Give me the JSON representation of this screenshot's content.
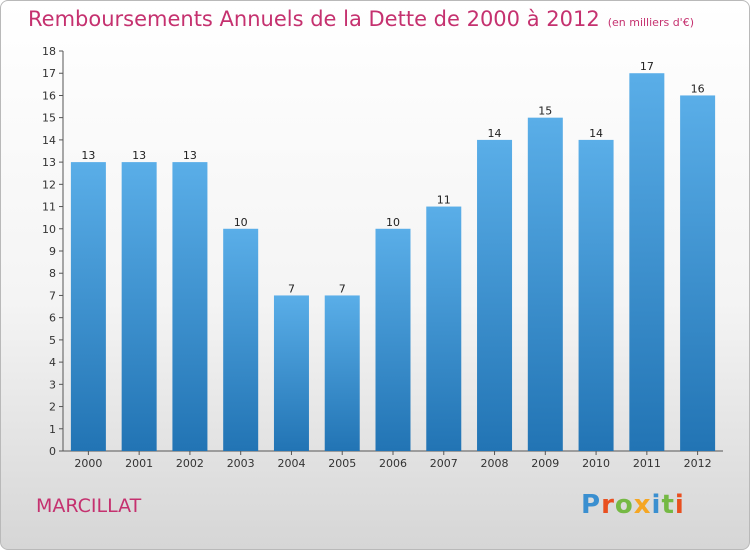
{
  "header": {
    "title": "Remboursements Annuels de la Dette de 2000 à 2012",
    "unit": "(en milliers d'€)"
  },
  "footer": {
    "city": "MARCILLAT",
    "logo_letters": [
      "P",
      "r",
      "o",
      "x",
      "i",
      "t",
      "i"
    ]
  },
  "colors": {
    "bar_top": "#5aaee8",
    "bar_bottom": "#2274b4",
    "title": "#c5316f"
  },
  "chart_data": {
    "type": "bar",
    "categories": [
      "2000",
      "2001",
      "2002",
      "2003",
      "2004",
      "2005",
      "2006",
      "2007",
      "2008",
      "2009",
      "2010",
      "2011",
      "2012"
    ],
    "values": [
      13,
      13,
      13,
      10,
      7,
      7,
      10,
      11,
      14,
      15,
      14,
      17,
      16
    ],
    "title": "Remboursements Annuels de la Dette de 2000 à 2012",
    "subtitle": "(en milliers d'€)",
    "xlabel": "",
    "ylabel": "",
    "ylim": [
      0,
      18
    ],
    "yticks": [
      0,
      1,
      2,
      3,
      4,
      5,
      6,
      7,
      8,
      9,
      10,
      11,
      12,
      13,
      14,
      15,
      16,
      17,
      18
    ],
    "grid": false,
    "data_labels": true
  }
}
